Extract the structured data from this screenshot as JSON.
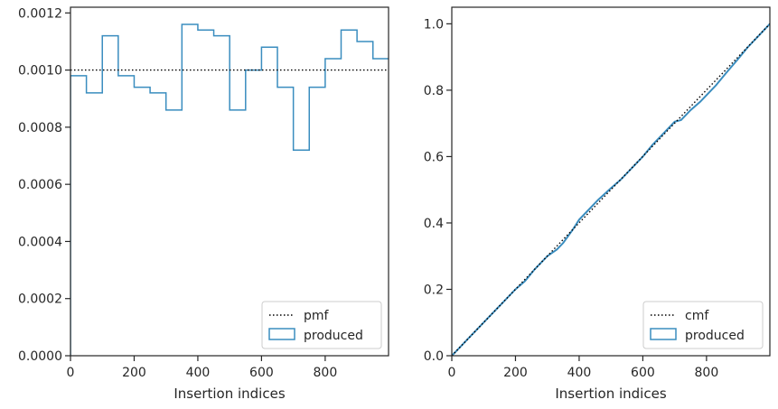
{
  "chart_data": [
    {
      "type": "step",
      "xlabel": "Insertion indices",
      "ylabel": "",
      "xlim": [
        0,
        999
      ],
      "ylim": [
        0,
        0.00122
      ],
      "xticks": [
        0,
        200,
        400,
        600,
        800
      ],
      "yticks": [
        0.0,
        0.0002,
        0.0004,
        0.0006,
        0.0008,
        0.001,
        0.0012
      ],
      "ytick_labels": [
        "0.0000",
        "0.0002",
        "0.0004",
        "0.0006",
        "0.0008",
        "0.0010",
        "0.0012"
      ],
      "reference": {
        "name": "pmf",
        "style": "dotted",
        "value": 0.001
      },
      "histogram": {
        "name": "produced",
        "bin_edges": [
          0,
          50,
          100,
          150,
          200,
          250,
          300,
          350,
          400,
          450,
          500,
          550,
          600,
          650,
          700,
          750,
          800,
          850,
          900,
          950,
          1000
        ],
        "values": [
          0.00098,
          0.00092,
          0.00112,
          0.00098,
          0.00094,
          0.00092,
          0.00086,
          0.00116,
          0.00114,
          0.00112,
          0.00086,
          0.001,
          0.00108,
          0.00094,
          0.00072,
          0.00094,
          0.00104,
          0.00114,
          0.0011,
          0.00104
        ]
      },
      "legend": {
        "placement": "lower right",
        "entries": [
          "pmf",
          "produced"
        ]
      },
      "colors": {
        "histogram": "#3a8dbf",
        "reference": "#000000"
      }
    },
    {
      "type": "step",
      "xlabel": "Insertion indices",
      "ylabel": "",
      "xlim": [
        0,
        999
      ],
      "ylim": [
        0,
        1.05
      ],
      "xticks": [
        0,
        200,
        400,
        600,
        800
      ],
      "yticks": [
        0.0,
        0.2,
        0.4,
        0.6,
        0.8,
        1.0
      ],
      "ytick_labels": [
        "0.0",
        "0.2",
        "0.4",
        "0.6",
        "0.8",
        "1.0"
      ],
      "reference": {
        "name": "cmf",
        "style": "dotted",
        "from": [
          0,
          0
        ],
        "to": [
          999,
          1.0
        ]
      },
      "cumulative": {
        "name": "produced",
        "x": [
          0,
          20,
          50,
          80,
          100,
          130,
          160,
          200,
          230,
          260,
          300,
          330,
          350,
          380,
          400,
          430,
          460,
          500,
          530,
          560,
          600,
          630,
          660,
          700,
          720,
          750,
          780,
          800,
          830,
          860,
          900,
          930,
          960,
          999
        ],
        "y": [
          0.0,
          0.02,
          0.05,
          0.08,
          0.1,
          0.13,
          0.16,
          0.2,
          0.225,
          0.26,
          0.3,
          0.32,
          0.34,
          0.38,
          0.41,
          0.44,
          0.47,
          0.505,
          0.53,
          0.56,
          0.6,
          0.635,
          0.665,
          0.705,
          0.71,
          0.74,
          0.765,
          0.785,
          0.815,
          0.85,
          0.895,
          0.93,
          0.96,
          1.0
        ]
      },
      "legend": {
        "placement": "lower right",
        "entries": [
          "cmf",
          "produced"
        ]
      },
      "colors": {
        "histogram": "#3a8dbf",
        "reference": "#000000"
      }
    }
  ]
}
